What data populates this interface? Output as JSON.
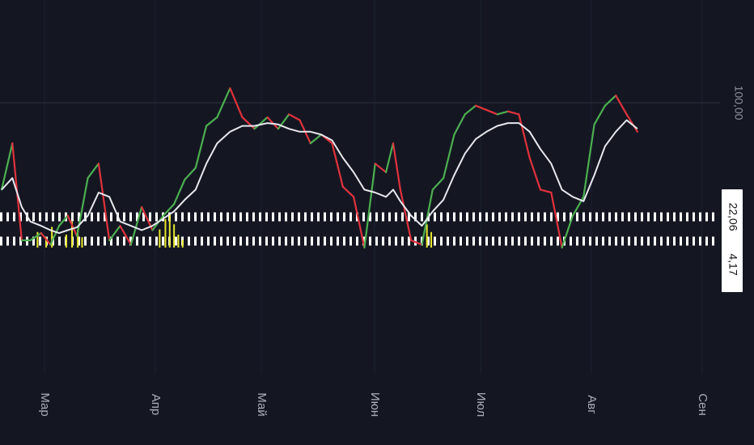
{
  "chart_data": {
    "type": "line",
    "title": "",
    "xlabel": "",
    "ylabel": "",
    "ylim": [
      -60,
      140
    ],
    "x_axis": {
      "months": [
        {
          "label": "Мар",
          "t": 0.06
        },
        {
          "label": "Апр",
          "t": 0.212
        },
        {
          "label": "Май",
          "t": 0.358
        },
        {
          "label": "Июн",
          "t": 0.51
        },
        {
          "label": "Июл",
          "t": 0.658
        },
        {
          "label": "Авг",
          "t": 0.805
        },
        {
          "label": "Сен",
          "t": 0.955
        }
      ]
    },
    "price_levels": [
      {
        "label": "100,00",
        "value": 100,
        "style": "plain"
      },
      {
        "label": "22,06",
        "value": 22.06,
        "style": "tag"
      },
      {
        "label": "4,17",
        "value": 4.17,
        "style": "tag"
      }
    ],
    "reference_lines": [
      {
        "value": 22.06,
        "style": "dotted-white"
      },
      {
        "value": 4.17,
        "style": "dotted-white"
      },
      {
        "value": 100,
        "style": "faint"
      }
    ],
    "series": [
      {
        "color_up": "#4caf50",
        "color_down": "#e0323c",
        "t": [
          0.0,
          0.015,
          0.028,
          0.04,
          0.055,
          0.068,
          0.08,
          0.092,
          0.105,
          0.12,
          0.135,
          0.15,
          0.165,
          0.18,
          0.195,
          0.21,
          0.225,
          0.24,
          0.255,
          0.27,
          0.285,
          0.3,
          0.318,
          0.335,
          0.352,
          0.37,
          0.385,
          0.4,
          0.415,
          0.43,
          0.445,
          0.46,
          0.475,
          0.49,
          0.505,
          0.52,
          0.535,
          0.545,
          0.555,
          0.57,
          0.585,
          0.6,
          0.615,
          0.63,
          0.645,
          0.66,
          0.675,
          0.69,
          0.705,
          0.72,
          0.735,
          0.75,
          0.765,
          0.78,
          0.795,
          0.81,
          0.825,
          0.84,
          0.855,
          0.87,
          0.885
        ],
        "values": [
          40,
          72,
          5,
          5,
          10,
          2,
          15,
          22,
          8,
          48,
          58,
          5,
          15,
          2,
          28,
          12,
          22,
          30,
          47,
          55,
          84,
          90,
          110,
          90,
          82,
          90,
          82,
          92,
          88,
          72,
          78,
          72,
          42,
          35,
          0,
          58,
          52,
          72,
          40,
          5,
          2,
          40,
          48,
          78,
          92,
          98,
          95,
          92,
          94,
          92,
          62,
          40,
          38,
          0,
          22,
          35,
          85,
          98,
          105,
          92,
          80
        ]
      },
      {
        "color": "#e8e8ee",
        "t": [
          0.0,
          0.015,
          0.028,
          0.04,
          0.055,
          0.068,
          0.08,
          0.092,
          0.105,
          0.12,
          0.135,
          0.15,
          0.165,
          0.18,
          0.195,
          0.21,
          0.225,
          0.24,
          0.255,
          0.27,
          0.285,
          0.3,
          0.318,
          0.335,
          0.352,
          0.37,
          0.385,
          0.4,
          0.415,
          0.43,
          0.445,
          0.46,
          0.475,
          0.49,
          0.505,
          0.52,
          0.535,
          0.545,
          0.555,
          0.57,
          0.585,
          0.6,
          0.615,
          0.63,
          0.645,
          0.66,
          0.675,
          0.69,
          0.705,
          0.72,
          0.735,
          0.75,
          0.765,
          0.78,
          0.795,
          0.81,
          0.825,
          0.84,
          0.855,
          0.87,
          0.885
        ],
        "values": [
          40,
          48,
          28,
          18,
          15,
          12,
          10,
          12,
          14,
          22,
          38,
          35,
          18,
          15,
          12,
          15,
          20,
          25,
          33,
          40,
          58,
          72,
          80,
          84,
          84,
          86,
          85,
          82,
          80,
          80,
          78,
          74,
          62,
          52,
          40,
          38,
          35,
          40,
          32,
          22,
          15,
          25,
          33,
          50,
          65,
          75,
          80,
          84,
          86,
          86,
          80,
          68,
          58,
          40,
          35,
          32,
          50,
          70,
          80,
          88,
          82
        ]
      }
    ],
    "signal_spikes": [
      {
        "t": 0.05,
        "value": 12
      },
      {
        "t": 0.062,
        "value": 8
      },
      {
        "t": 0.07,
        "value": 16
      },
      {
        "t": 0.09,
        "value": 10
      },
      {
        "t": 0.098,
        "value": 20
      },
      {
        "t": 0.106,
        "value": 14
      },
      {
        "t": 0.112,
        "value": 8
      },
      {
        "t": 0.22,
        "value": 14
      },
      {
        "t": 0.228,
        "value": 22
      },
      {
        "t": 0.234,
        "value": 26
      },
      {
        "t": 0.24,
        "value": 18
      },
      {
        "t": 0.246,
        "value": 10
      },
      {
        "t": 0.252,
        "value": 6
      },
      {
        "t": 0.592,
        "value": 18
      },
      {
        "t": 0.598,
        "value": 12
      }
    ]
  }
}
